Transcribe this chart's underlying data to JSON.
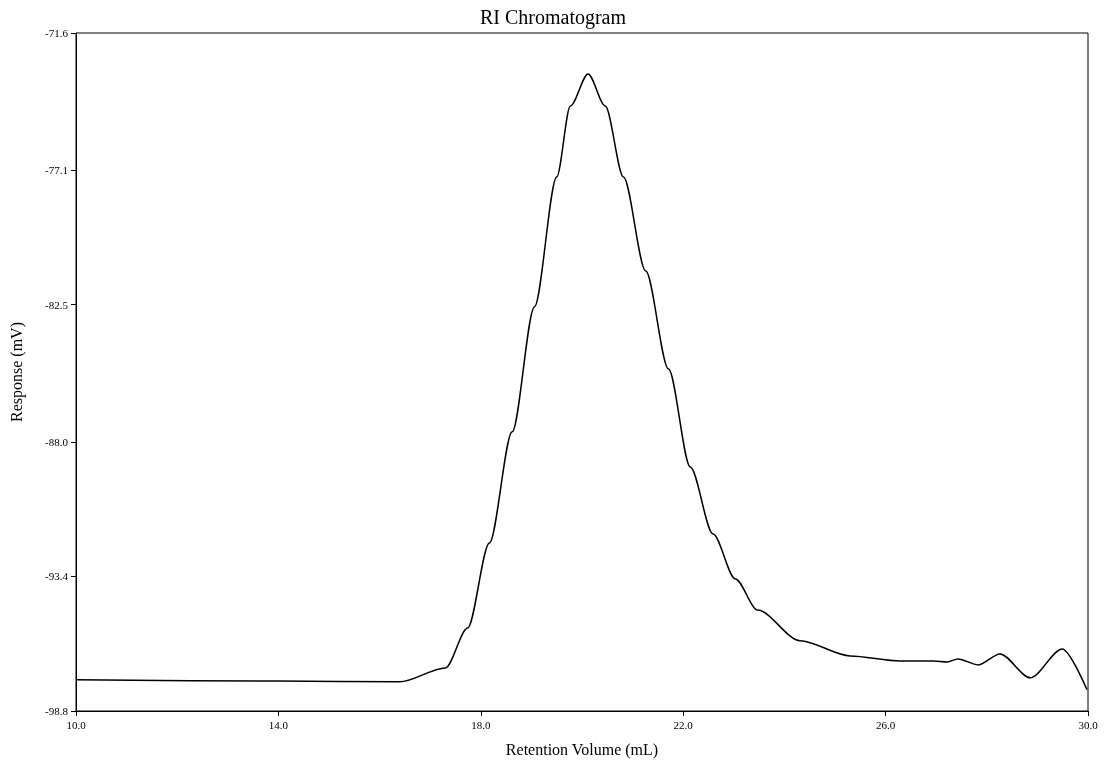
{
  "chart_data": {
    "type": "line",
    "title": "RI Chromatogram",
    "xlabel": "Retention Volume (mL)",
    "ylabel": "Response (mV)",
    "xlim": [
      10,
      30
    ],
    "xticks": [
      {
        "value": 10,
        "label": "10.0"
      },
      {
        "value": 14,
        "label": "14.0"
      },
      {
        "value": 18,
        "label": "18.0"
      },
      {
        "value": 22,
        "label": "22.0"
      },
      {
        "value": 26,
        "label": "26.0"
      },
      {
        "value": 30,
        "label": "30.0"
      }
    ],
    "ylim": [
      -98.8,
      -71.6
    ],
    "yticks": [
      -98.8,
      -93.4,
      {
        "value": -88,
        "label": "-88.0"
      },
      -82.5,
      -77.1,
      -71.6
    ],
    "grid": false,
    "marker": "none",
    "line_style": "solid",
    "series": [
      {
        "color": "#000000",
        "x": [
          10.0,
          14.0,
          16.4,
          17.3,
          17.74,
          18.17,
          18.62,
          19.06,
          19.5,
          19.77,
          20.12,
          20.46,
          20.82,
          21.26,
          21.71,
          22.14,
          22.59,
          23.03,
          23.47,
          24.31,
          25.3,
          26.29,
          26.94,
          27.22,
          27.43,
          27.83,
          28.26,
          28.86,
          29.49,
          29.98
        ],
        "values": [
          -97.55,
          -97.6,
          -97.63,
          -97.07,
          -95.47,
          -92.06,
          -87.6,
          -82.59,
          -77.38,
          -74.53,
          -73.24,
          -74.53,
          -77.38,
          -81.15,
          -85.08,
          -89.01,
          -91.7,
          -93.5,
          -94.75,
          -95.98,
          -96.59,
          -96.79,
          -96.79,
          -96.83,
          -96.71,
          -96.95,
          -96.51,
          -97.47,
          -96.31,
          -97.95
        ]
      }
    ]
  }
}
